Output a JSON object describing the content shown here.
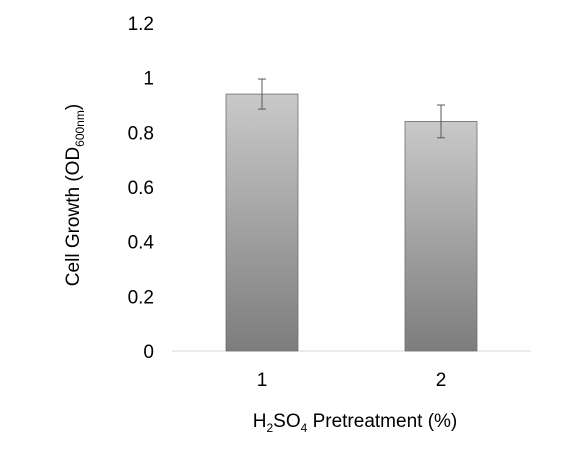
{
  "chart_data": {
    "type": "bar",
    "categories": [
      "1",
      "2"
    ],
    "values": [
      0.94,
      0.84
    ],
    "errors": [
      0.055,
      0.06
    ],
    "xlabel": {
      "before": "H",
      "sub1": "2",
      "middle": "SO",
      "sub2": "4",
      "after": " Pretreatment (%)"
    },
    "ylabel": {
      "main": "Cell Growth (OD",
      "sub": "600nm",
      "after": ")"
    },
    "ylim": [
      0,
      1.2
    ],
    "yticks": [
      "0",
      "0.2",
      "0.4",
      "0.6",
      "0.8",
      "1",
      "1.2"
    ],
    "grid": false,
    "legend": "none",
    "colors": {
      "bar_top": "#c9c9c9",
      "bar_mid": "#a3a3a3",
      "bar_bottom": "#7d7d7d",
      "bar_edge": "#6e6e6e",
      "axis": "#d9d9d9",
      "error_bar": "#595959"
    }
  }
}
